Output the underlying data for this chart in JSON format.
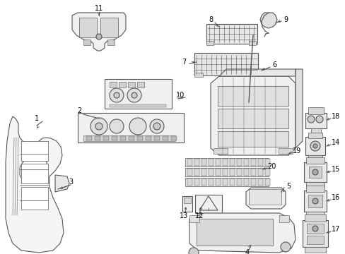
{
  "bg": "#ffffff",
  "lc": "#555555",
  "tc": "#000000",
  "lw": 0.8,
  "fs": 7.0,
  "fig_w": 4.89,
  "fig_h": 3.6,
  "dpi": 100,
  "xmax": 489,
  "ymax": 360
}
